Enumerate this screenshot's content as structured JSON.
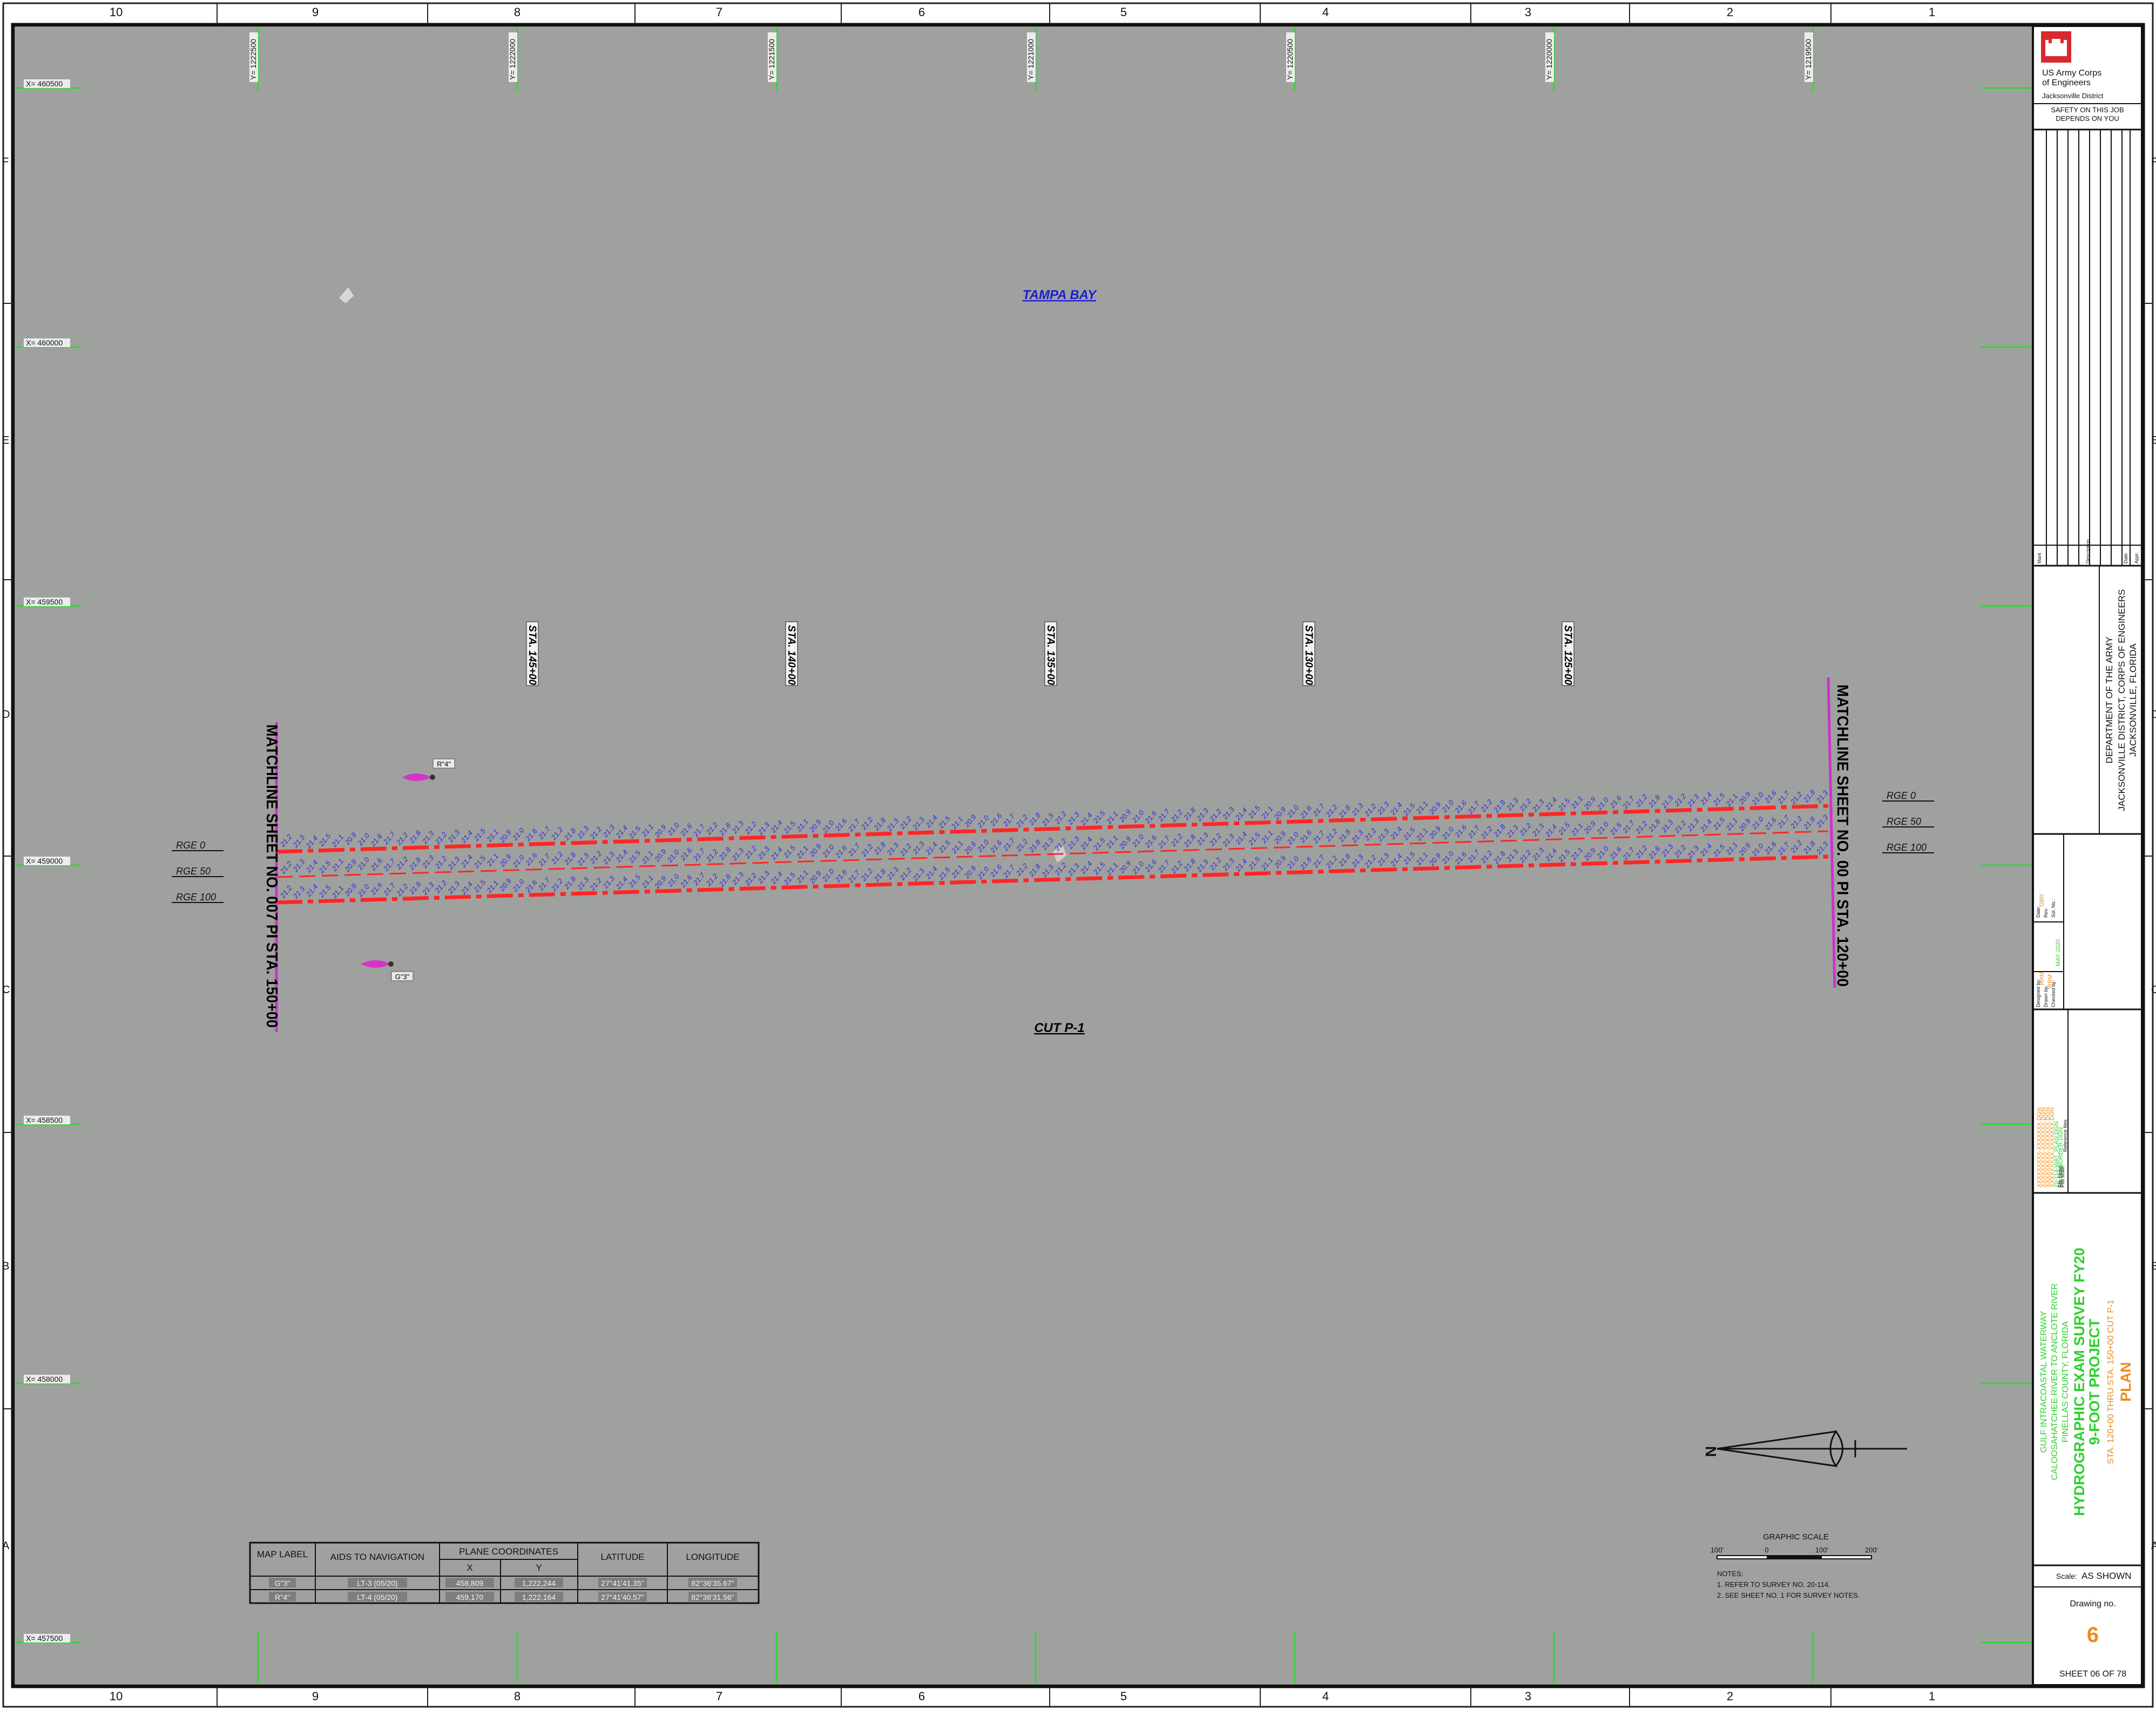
{
  "border": {
    "columns": [
      "10",
      "9",
      "8",
      "7",
      "6",
      "5",
      "4",
      "3",
      "2",
      "1"
    ],
    "rows": [
      "F",
      "E",
      "D",
      "C",
      "B",
      "A"
    ]
  },
  "grid": {
    "x_labels": [
      "X= 460500",
      "X= 460000",
      "X= 459500",
      "X= 459000",
      "X= 458500",
      "X= 458000",
      "X= 457500"
    ],
    "y_labels": [
      "Y= 1222500",
      "Y= 1222000",
      "Y= 1221500",
      "Y= 1221000",
      "Y= 1220500",
      "Y= 1220000",
      "Y= 1219500"
    ]
  },
  "map": {
    "water_name": "TAMPA BAY",
    "cut_label": "CUT P-1",
    "matchline_left": "MATCHLINE SHEET NO. 007 PI STA. 150+00",
    "matchline_right": "MATCHLINE SHEET NO. 00 PI STA. 120+00",
    "stations": [
      "STA. 145+00",
      "STA. 140+00",
      "STA. 135+00",
      "STA. 130+00",
      "STA. 125+00"
    ],
    "ranges": [
      "RGE 0",
      "RGE 50",
      "RGE 100"
    ],
    "aids": [
      {
        "label": "R\"4\"",
        "color": "#cc33bb"
      },
      {
        "label": "G\"3\"",
        "color": "#cc33bb"
      }
    ],
    "soundings": [
      "21.2",
      "21.3",
      "21.4",
      "21.5",
      "21.1",
      "20.9",
      "21.0",
      "21.6",
      "21.7",
      "21.2",
      "21.8",
      "21.3"
    ]
  },
  "aids_table": {
    "headers": {
      "map_label": "MAP LABEL",
      "aids": "AIDS TO NAVIGATION",
      "plane": "PLANE COORDINATES",
      "x": "X",
      "y": "Y",
      "lat": "LATITUDE",
      "lon": "LONGITUDE"
    },
    "rows": [
      {
        "map_label": "G\"3\"",
        "aid": "LT-3 (05/20)",
        "x": "458,809",
        "y": "1,222,244",
        "lat": "27°41'41.35\"",
        "lon": "82°36'35.67\""
      },
      {
        "map_label": "R\"4\"",
        "aid": "LT-4 (05/20)",
        "x": "459,170",
        "y": "1,222,164",
        "lat": "27°41'40.57\"",
        "lon": "82°36'31.56\""
      }
    ]
  },
  "graphic_scale": {
    "title": "GRAPHIC SCALE",
    "ticks": [
      "100'",
      "0",
      "100'",
      "200'"
    ]
  },
  "notes": {
    "title": "NOTES:",
    "items": [
      "1. REFER TO SURVEY NO. 20-114.",
      "2. SEE SHEET NO. 1 FOR SURVEY NOTES."
    ]
  },
  "title_block": {
    "agency_line1": "US Army Corps",
    "agency_line2": "of Engineers",
    "district": "Jacksonville District",
    "safety": "SAFETY ON THIS JOB DEPENDS ON YOU",
    "dept_line1": "DEPARTMENT OF THE ARMY",
    "dept_line2": "JACKSONVILLE DISTRICT, CORPS OF ENGINEERS",
    "dept_line3": "JACKSONVILLE, FLORIDA",
    "project_line1": "GULF INTRACOASTAL WATERWAY",
    "project_line2": "CALOOSAHATCHEE RIVER TO ANCLOTE RIVER",
    "project_line3": "PINELLAS COUNTY, FLORIDA",
    "project_line4": "HYDROGRAPHIC EXAM SURVEY FY20",
    "project_line5": "9-FOOT PROJECT",
    "project_line6": "STA. 120+00 THRU STA. 150+00 CUT P-1",
    "project_line7": "PLAN",
    "scale_label": "Scale:",
    "scale_value": "AS SHOWN",
    "drawing_label": "Drawing no.",
    "drawing_number": "6",
    "sheet_text": "SHEET 06 OF 78",
    "revision_headers": [
      "Mark",
      "Description",
      "Date",
      "Appr."
    ],
    "design_labels": [
      "Designed by:",
      "Drawn by:",
      "Checked by:",
      "Date:",
      "Rev:",
      "Sol. No.:"
    ],
    "design_values": [
      "RRM",
      "RRM",
      "GBR",
      "MAY 2020"
    ],
    "file_labels": [
      "Reference files",
      "Plot scale:",
      "File name:"
    ],
    "file_values": [
      "XXXXXXXXX-XXXXXXX.DGN",
      "XXXXXXXXX-XXXXXXX.DGN",
      "XXXXXXXXX-XXXXXXX.DGN",
      "XXXXXXXXX-XXXXXXX.DGN",
      "20-114-WAT_PLAN.DGN",
      "20-114-BORDER.DGN"
    ],
    "file_name": "20-114-WAT_PLAN.DGN",
    "colors": {
      "green": "#2fcf2f",
      "orange": "#ee8a1a",
      "red": "#d8292f"
    }
  }
}
